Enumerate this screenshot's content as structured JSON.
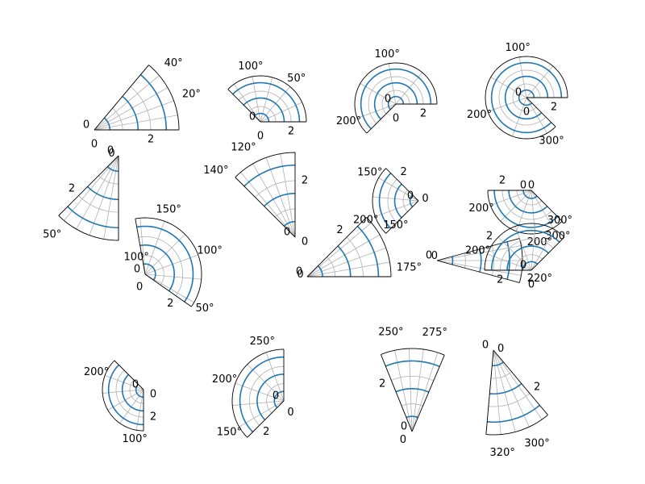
{
  "colors": {
    "series": "#1f77b4",
    "grid": "#b0b0b0",
    "frame": "#000000",
    "background": "#ffffff"
  },
  "chart_data": [
    {
      "type": "line",
      "theta_range_deg": [
        0,
        50
      ],
      "r_range": [
        0,
        3
      ],
      "theta_tick_labels": [
        "0",
        "20°",
        "40°"
      ],
      "r_tick_labels": [
        "0",
        "2"
      ]
    },
    {
      "type": "line",
      "theta_range_deg": [
        0,
        135
      ],
      "r_range": [
        0,
        3
      ],
      "theta_tick_labels": [
        "0",
        "50°",
        "100°"
      ],
      "r_tick_labels": [
        "0",
        "2"
      ]
    },
    {
      "type": "line",
      "theta_range_deg": [
        0,
        225
      ],
      "r_range": [
        0,
        3
      ],
      "theta_tick_labels": [
        "0",
        "100°",
        "200°"
      ],
      "r_tick_labels": [
        "0",
        "2"
      ]
    },
    {
      "type": "line",
      "theta_range_deg": [
        0,
        315
      ],
      "r_range": [
        0,
        3
      ],
      "theta_tick_labels": [
        "0",
        "100°",
        "200°",
        "300°"
      ],
      "r_tick_labels": [
        "0",
        "2"
      ]
    },
    {
      "type": "line",
      "theta_range_deg": [
        45,
        90
      ],
      "r_range": [
        0,
        3
      ],
      "theta_tick_labels": [
        "0",
        "50°",
        "100°"
      ],
      "r_tick_labels": [
        "0",
        "2"
      ]
    },
    {
      "type": "line",
      "theta_range_deg": [
        90,
        135
      ],
      "r_range": [
        0,
        3
      ],
      "theta_tick_labels": [
        "0",
        "120°",
        "140°"
      ],
      "r_tick_labels": [
        "0",
        "2"
      ]
    },
    {
      "type": "line",
      "theta_range_deg": [
        135,
        225
      ],
      "r_range": [
        0,
        3
      ],
      "theta_tick_labels": [
        "0",
        "150°",
        "200°"
      ],
      "r_tick_labels": [
        "0",
        "2"
      ]
    },
    {
      "type": "line",
      "theta_range_deg": [
        180,
        315
      ],
      "r_range": [
        0,
        3
      ],
      "theta_tick_labels": [
        "0",
        "200°",
        "300°"
      ],
      "r_tick_labels": [
        "0",
        "2"
      ]
    },
    {
      "type": "line",
      "theta_range_deg": [
        45,
        180
      ],
      "r_range": [
        0,
        3
      ],
      "theta_tick_labels": [
        "0",
        "50°",
        "100°",
        "150°"
      ],
      "r_tick_labels": [
        "0",
        "2"
      ]
    },
    {
      "type": "line",
      "theta_range_deg": [
        135,
        180
      ],
      "r_range": [
        0,
        3
      ],
      "theta_tick_labels": [
        "0",
        "150°",
        "175°"
      ],
      "r_tick_labels": [
        "0",
        "2"
      ]
    },
    {
      "type": "line",
      "theta_range_deg": [
        195,
        225
      ],
      "r_range": [
        0,
        3
      ],
      "theta_tick_labels": [
        "0",
        "200°",
        "220°"
      ],
      "r_tick_labels": [
        "0",
        "2"
      ]
    },
    {
      "type": "line",
      "theta_range_deg": [
        180,
        315
      ],
      "r_range": [
        0,
        3
      ],
      "theta_tick_labels": [
        "0",
        "200°",
        "300°"
      ],
      "r_tick_labels": [
        "0",
        "2"
      ]
    },
    {
      "type": "line",
      "theta_range_deg": [
        90,
        225
      ],
      "r_range": [
        0,
        3
      ],
      "theta_tick_labels": [
        "0",
        "100°",
        "200°"
      ],
      "r_tick_labels": [
        "0",
        "2"
      ]
    },
    {
      "type": "line",
      "theta_range_deg": [
        135,
        270
      ],
      "r_range": [
        0,
        3
      ],
      "theta_tick_labels": [
        "0",
        "150°",
        "200°",
        "250°"
      ],
      "r_tick_labels": [
        "0",
        "2"
      ]
    },
    {
      "type": "line",
      "theta_range_deg": [
        240,
        285
      ],
      "r_range": [
        0,
        3
      ],
      "theta_tick_labels": [
        "0",
        "250°",
        "275°"
      ],
      "r_tick_labels": [
        "0",
        "2"
      ]
    },
    {
      "type": "line",
      "theta_range_deg": [
        285,
        330
      ],
      "r_range": [
        0,
        3
      ],
      "theta_tick_labels": [
        "0",
        "300°",
        "320°"
      ],
      "r_tick_labels": [
        "0",
        "2"
      ]
    }
  ]
}
